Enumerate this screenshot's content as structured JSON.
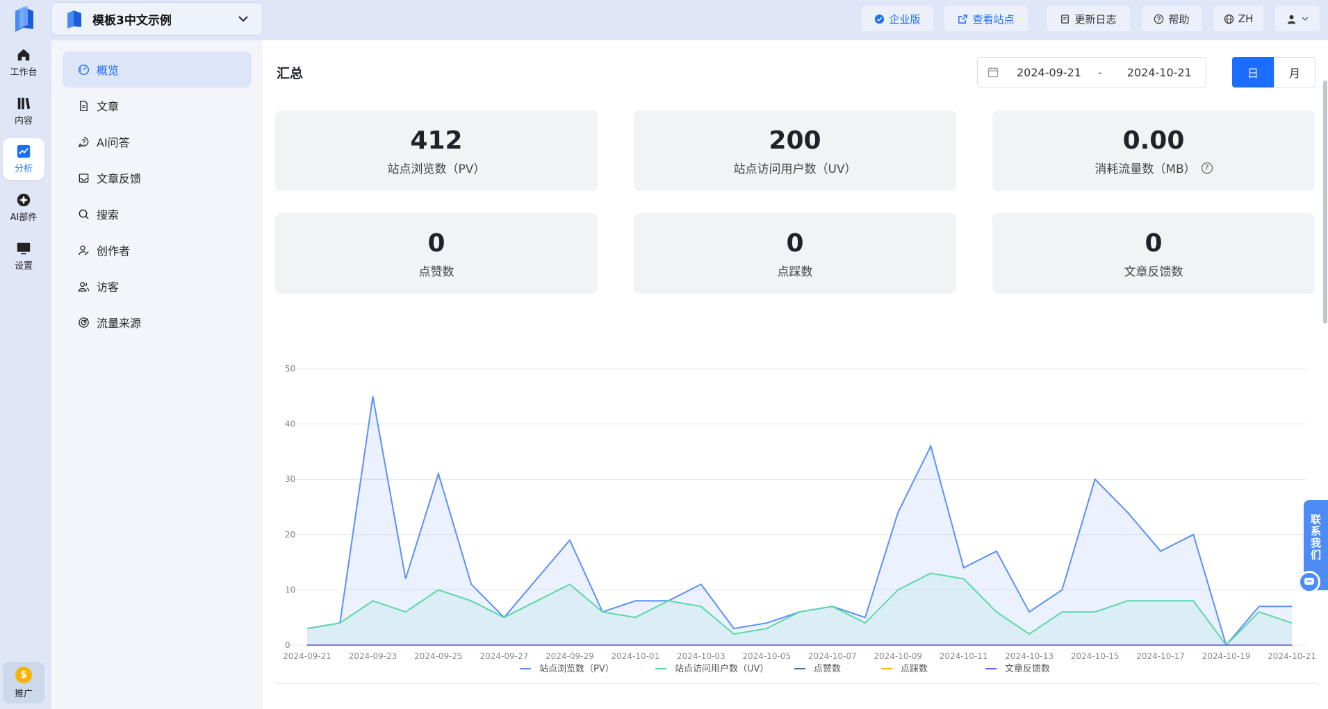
{
  "rail": {
    "items": [
      {
        "label": "工作台",
        "icon": "home-icon"
      },
      {
        "label": "内容",
        "icon": "books-icon"
      },
      {
        "label": "分析",
        "icon": "chart-icon"
      },
      {
        "label": "AI部件",
        "icon": "ai-widget-icon"
      },
      {
        "label": "设置",
        "icon": "monitor-icon"
      }
    ],
    "promo_label": "推广",
    "coin_symbol": "$"
  },
  "header": {
    "site_title": "模板3中文示例",
    "buttons": {
      "enterprise": "企业版",
      "view_site": "查看站点",
      "changelog": "更新日志",
      "help": "帮助",
      "language": "ZH"
    }
  },
  "subnav": {
    "items": [
      {
        "label": "概览",
        "icon": "gauge-icon"
      },
      {
        "label": "文章",
        "icon": "document-icon"
      },
      {
        "label": "AI问答",
        "icon": "ai-question-icon"
      },
      {
        "label": "文章反馈",
        "icon": "inbox-icon"
      },
      {
        "label": "搜索",
        "icon": "search-icon"
      },
      {
        "label": "创作者",
        "icon": "creator-icon"
      },
      {
        "label": "访客",
        "icon": "visitors-icon"
      },
      {
        "label": "流量来源",
        "icon": "traffic-source-icon"
      }
    ]
  },
  "main": {
    "title": "汇总",
    "date_start": "2024-09-21",
    "date_sep": "-",
    "date_end": "2024-10-21",
    "toggle_day": "日",
    "toggle_month": "月",
    "stats": [
      {
        "value": "412",
        "label": "站点浏览数（PV）"
      },
      {
        "value": "200",
        "label": "站点访问用户数（UV）"
      },
      {
        "value": "0.00",
        "label": "消耗流量数（MB）"
      },
      {
        "value": "0",
        "label": "点赞数"
      },
      {
        "value": "0",
        "label": "点踩数"
      },
      {
        "value": "0",
        "label": "文章反馈数"
      }
    ],
    "help_mark": "?"
  },
  "contact_label": "联系我们",
  "colors": {
    "accent": "#1a6dfd",
    "pv": "#5b8ff9",
    "uv": "#5ad8a6",
    "likes": "#5d7092",
    "dislikes": "#f6bd16",
    "feedback": "#6f5ef9"
  },
  "chart_data": {
    "type": "area",
    "ylim": [
      0,
      50
    ],
    "yticks": [
      0,
      10,
      20,
      30,
      40,
      50
    ],
    "x": [
      "2024-09-21",
      "2024-09-22",
      "2024-09-23",
      "2024-09-24",
      "2024-09-25",
      "2024-09-26",
      "2024-09-27",
      "2024-09-28",
      "2024-09-29",
      "2024-09-30",
      "2024-10-01",
      "2024-10-02",
      "2024-10-03",
      "2024-10-04",
      "2024-10-05",
      "2024-10-06",
      "2024-10-07",
      "2024-10-08",
      "2024-10-09",
      "2024-10-10",
      "2024-10-11",
      "2024-10-12",
      "2024-10-13",
      "2024-10-14",
      "2024-10-15",
      "2024-10-16",
      "2024-10-17",
      "2024-10-18",
      "2024-10-19",
      "2024-10-20",
      "2024-10-21"
    ],
    "xtick_labels": [
      "2024-09-21",
      "2024-09-23",
      "2024-09-25",
      "2024-09-27",
      "2024-09-29",
      "2024-10-01",
      "2024-10-03",
      "2024-10-05",
      "2024-10-07",
      "2024-10-09",
      "2024-10-11",
      "2024-10-13",
      "2024-10-15",
      "2024-10-17",
      "2024-10-19",
      "2024-10-21"
    ],
    "series": [
      {
        "name": "站点浏览数（PV）",
        "values": [
          3,
          4,
          45,
          12,
          31,
          11,
          5,
          12,
          19,
          6,
          8,
          8,
          11,
          3,
          4,
          6,
          7,
          5,
          24,
          36,
          14,
          17,
          6,
          10,
          30,
          24,
          17,
          20,
          0,
          7,
          7
        ]
      },
      {
        "name": "站点访问用户数（UV）",
        "values": [
          3,
          4,
          8,
          6,
          10,
          8,
          5,
          8,
          11,
          6,
          5,
          8,
          7,
          2,
          3,
          6,
          7,
          4,
          10,
          13,
          12,
          6,
          2,
          6,
          6,
          8,
          8,
          8,
          0,
          6,
          4
        ]
      },
      {
        "name": "点赞数",
        "values": [
          0,
          0,
          0,
          0,
          0,
          0,
          0,
          0,
          0,
          0,
          0,
          0,
          0,
          0,
          0,
          0,
          0,
          0,
          0,
          0,
          0,
          0,
          0,
          0,
          0,
          0,
          0,
          0,
          0,
          0,
          0
        ]
      },
      {
        "name": "点踩数",
        "values": [
          0,
          0,
          0,
          0,
          0,
          0,
          0,
          0,
          0,
          0,
          0,
          0,
          0,
          0,
          0,
          0,
          0,
          0,
          0,
          0,
          0,
          0,
          0,
          0,
          0,
          0,
          0,
          0,
          0,
          0,
          0
        ]
      },
      {
        "name": "文章反馈数",
        "values": [
          0,
          0,
          0,
          0,
          0,
          0,
          0,
          0,
          0,
          0,
          0,
          0,
          0,
          0,
          0,
          0,
          0,
          0,
          0,
          0,
          0,
          0,
          0,
          0,
          0,
          0,
          0,
          0,
          0,
          0,
          0
        ]
      }
    ]
  }
}
